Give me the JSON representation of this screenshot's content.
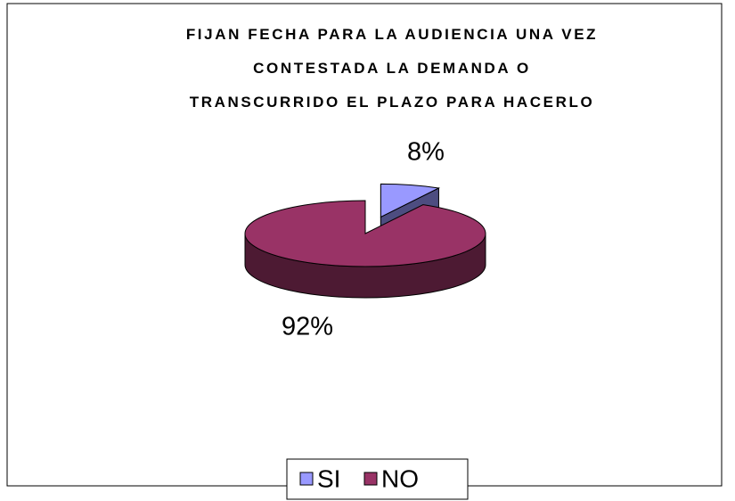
{
  "chart_data": {
    "type": "pie3d",
    "title": "FIJAN FECHA PARA LA AUDIENCIA UNA VEZ\nCONTESTADA LA DEMANDA O\nTRANSCURRIDO EL PLAZO PARA HACERLO",
    "categories": [
      "SI",
      "NO"
    ],
    "values": [
      8,
      92
    ],
    "value_labels": [
      "8%",
      "92%"
    ],
    "colors": [
      "#9999ff",
      "#993366"
    ],
    "legend": "bottom"
  }
}
